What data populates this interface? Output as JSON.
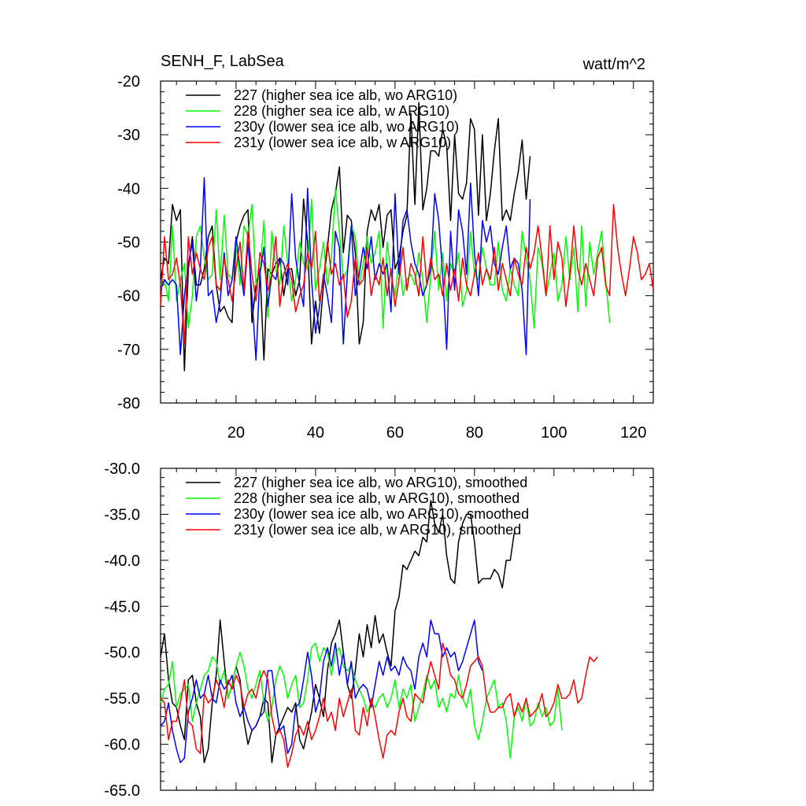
{
  "chart_data": [
    {
      "type": "line",
      "title": "SENH_F, LabSea",
      "units": "watt/m^2",
      "xlabel": "",
      "ylabel": "",
      "xlim": [
        1,
        125
      ],
      "ylim": [
        -80,
        -20
      ],
      "yticks": [
        -80,
        -70,
        -60,
        -50,
        -40,
        -30,
        -20
      ],
      "ytick_labels": [
        "-80",
        "-70",
        "-60",
        "-50",
        "-40",
        "-30",
        "-20"
      ],
      "xticks": [
        20,
        40,
        60,
        80,
        100,
        120
      ],
      "xtick_labels": [
        "20",
        "40",
        "60",
        "80",
        "100",
        "120"
      ],
      "legend_position": "top-left",
      "series": [
        {
          "name": "227 (higher sea ice alb, wo ARG10)",
          "color": "#000000",
          "values": [
            -57,
            -53,
            -54,
            -43,
            -46,
            -44,
            -74,
            -55,
            -49,
            -58,
            -58,
            -55,
            -49,
            -47,
            -58,
            -63,
            -62,
            -64,
            -65,
            -50,
            -47,
            -45,
            -44,
            -65,
            -58,
            -55,
            -72,
            -55,
            -56,
            -54,
            -53,
            -60,
            -55,
            -55,
            -60,
            -57,
            -42,
            -50,
            -69,
            -61,
            -67,
            -58,
            -51,
            -44,
            -41,
            -36,
            -52,
            -45,
            -46,
            -52,
            -69,
            -65,
            -48,
            -44,
            -46,
            -43,
            -51,
            -45,
            -44,
            -55,
            -53,
            -48,
            -45,
            -26,
            -43,
            -24,
            -44,
            -40,
            -33,
            -33,
            -34,
            -29,
            -32,
            -46,
            -30,
            -41,
            -42,
            -39,
            -27,
            -29,
            -45,
            -30,
            -46,
            -41,
            -33,
            -27,
            -46,
            -44,
            -46,
            -41,
            -37,
            -31,
            -42,
            -34
          ]
        },
        {
          "name": "228 (higher sea ice alb, w ARG10)",
          "color": "#00ff00",
          "values": [
            -58,
            -57,
            -61,
            -47,
            -61,
            -57,
            -54,
            -66,
            -60,
            -49,
            -47,
            -53,
            -57,
            -56,
            -44,
            -57,
            -45,
            -56,
            -57,
            -50,
            -58,
            -47,
            -49,
            -43,
            -58,
            -56,
            -46,
            -64,
            -48,
            -55,
            -58,
            -47,
            -54,
            -61,
            -57,
            -50,
            -54,
            -55,
            -42,
            -59,
            -55,
            -50,
            -58,
            -53,
            -40,
            -48,
            -57,
            -55,
            -47,
            -49,
            -58,
            -54,
            -49,
            -54,
            -52,
            -48,
            -66,
            -50,
            -56,
            -60,
            -53,
            -60,
            -57,
            -56,
            -58,
            -52,
            -57,
            -65,
            -56,
            -48,
            -59,
            -52,
            -61,
            -54,
            -56,
            -52,
            -62,
            -59,
            -48,
            -56,
            -57,
            -51,
            -55,
            -58,
            -58,
            -50,
            -59,
            -61,
            -55,
            -58,
            -60,
            -48,
            -53,
            -57,
            -66,
            -51,
            -54,
            -60,
            -56,
            -52,
            -61,
            -58,
            -49,
            -57,
            -51,
            -63,
            -47,
            -62,
            -50,
            -56,
            -52,
            -48,
            -57,
            -65
          ]
        },
        {
          "name": "230y (lower sea ice alb, wo ARG10)",
          "color": "#0000ff",
          "values": [
            -59,
            -57,
            -58,
            -57,
            -58,
            -71,
            -60,
            -54,
            -50,
            -61,
            -55,
            -38,
            -60,
            -59,
            -65,
            -61,
            -52,
            -60,
            -57,
            -49,
            -55,
            -60,
            -50,
            -60,
            -72,
            -56,
            -51,
            -62,
            -56,
            -57,
            -53,
            -54,
            -58,
            -41,
            -53,
            -58,
            -62,
            -40,
            -57,
            -67,
            -62,
            -56,
            -60,
            -65,
            -48,
            -51,
            -69,
            -56,
            -47,
            -60,
            -56,
            -51,
            -55,
            -49,
            -57,
            -54,
            -56,
            -54,
            -63,
            -41,
            -56,
            -46,
            -44,
            -50,
            -54,
            -56,
            -60,
            -58,
            -55,
            -41,
            -46,
            -56,
            -70,
            -48,
            -59,
            -44,
            -48,
            -56,
            -39,
            -52,
            -60,
            -46,
            -50,
            -47,
            -54,
            -56,
            -51,
            -47,
            -55,
            -53,
            -54,
            -59,
            -71,
            -42
          ]
        },
        {
          "name": "231y (lower sea ice alb, w ARG10)",
          "color": "#ff0000",
          "values": [
            -62,
            -49,
            -57,
            -56,
            -53,
            -58,
            -69,
            -49,
            -56,
            -52,
            -55,
            -57,
            -51,
            -49,
            -58,
            -59,
            -53,
            -57,
            -61,
            -55,
            -50,
            -59,
            -48,
            -56,
            -61,
            -52,
            -54,
            -59,
            -56,
            -49,
            -62,
            -56,
            -54,
            -57,
            -63,
            -60,
            -58,
            -52,
            -55,
            -48,
            -61,
            -57,
            -50,
            -56,
            -54,
            -58,
            -56,
            -64,
            -61,
            -53,
            -58,
            -57,
            -51,
            -60,
            -56,
            -58,
            -53,
            -60,
            -55,
            -62,
            -57,
            -51,
            -59,
            -54,
            -56,
            -60,
            -49,
            -58,
            -53,
            -57,
            -56,
            -60,
            -54,
            -59,
            -55,
            -61,
            -53,
            -58,
            -60,
            -56,
            -52,
            -58,
            -55,
            -57,
            -51,
            -59,
            -54,
            -57,
            -60,
            -53,
            -56,
            -58,
            -51,
            -55,
            -52,
            -47,
            -53,
            -60,
            -47,
            -57,
            -50,
            -53,
            -62,
            -56,
            -47,
            -55,
            -58,
            -54,
            -57,
            -60,
            -53,
            -51,
            -58,
            -60,
            -43,
            -51,
            -56,
            -60,
            -55,
            -49,
            -52,
            -57,
            -56,
            -54,
            -59
          ]
        }
      ]
    },
    {
      "type": "line",
      "title": "",
      "xlabel": "",
      "ylabel": "",
      "xlim": [
        1,
        125
      ],
      "ylim": [
        -65.0,
        -30.0
      ],
      "yticks": [
        -65,
        -60,
        -55,
        -50,
        -45,
        -40,
        -35,
        -30
      ],
      "ytick_labels": [
        "-65.0",
        "-60.0",
        "-55.0",
        "-50.0",
        "-45.0",
        "-40.0",
        "-35.0",
        "-30.0"
      ],
      "xticks": [
        20,
        40,
        60,
        80,
        100,
        120
      ],
      "xtick_labels": [],
      "legend_position": "top-left",
      "series": [
        {
          "name": "227 (higher sea ice alb, wo ARG10), smoothed",
          "color": "#000000",
          "values": [
            -50.5,
            -48.0,
            -53.0,
            -55.5,
            -56.0,
            -58.0,
            -59.5,
            -53.0,
            -52.5,
            -55.5,
            -57.0,
            -62.0,
            -60.5,
            -55.5,
            -52.5,
            -46.5,
            -51.0,
            -55.0,
            -53.5,
            -51.5,
            -53.0,
            -57.5,
            -60.0,
            -58.5,
            -58.0,
            -57.0,
            -55.0,
            -55.5,
            -62.0,
            -59.0,
            -58.0,
            -57.0,
            -56.0,
            -56.5,
            -55.5,
            -59.5,
            -60.5,
            -58.5,
            -56.5,
            -53.5,
            -55.0,
            -57.0,
            -52.0,
            -49.0,
            -48.0,
            -46.5,
            -50.0,
            -53.5,
            -55.0,
            -52.0,
            -48.0,
            -50.5,
            -47.0,
            -49.5,
            -46.0,
            -49.0,
            -48.0,
            -50.0,
            -51.5,
            -45.5,
            -44.0,
            -40.5,
            -41.0,
            -40.0,
            -39.0,
            -39.5,
            -37.5,
            -38.0,
            -33.5,
            -36.0,
            -37.0,
            -35.0,
            -39.5,
            -42.0,
            -42.5,
            -38.0,
            -36.0,
            -35.0,
            -35.0,
            -38.0,
            -42.5,
            -42.0,
            -42.0,
            -42.0,
            -41.0,
            -41.5,
            -43.0,
            -40.0,
            -40.0,
            -37.0
          ]
        },
        {
          "name": "228 (higher sea ice alb, w ARG10), smoothed",
          "color": "#00ff00",
          "values": [
            -55.5,
            -54.0,
            -53.5,
            -51.0,
            -56.0,
            -54.5,
            -54.0,
            -53.5,
            -57.5,
            -55.5,
            -54.0,
            -52.5,
            -52.0,
            -50.5,
            -51.0,
            -53.5,
            -52.0,
            -55.0,
            -53.5,
            -51.5,
            -50.0,
            -51.5,
            -54.0,
            -55.0,
            -53.5,
            -52.0,
            -55.5,
            -57.5,
            -56.0,
            -53.0,
            -51.5,
            -52.5,
            -55.0,
            -53.5,
            -52.5,
            -56.0,
            -55.5,
            -53.0,
            -49.5,
            -49.0,
            -51.0,
            -49.5,
            -50.0,
            -52.5,
            -50.0,
            -49.5,
            -51.5,
            -52.0,
            -51.5,
            -53.0,
            -54.0,
            -55.0,
            -56.5,
            -55.5,
            -56.0,
            -55.0,
            -54.5,
            -56.0,
            -55.0,
            -53.0,
            -56.0,
            -54.0,
            -55.0,
            -53.5,
            -57.5,
            -56.0,
            -54.5,
            -52.5,
            -54.0,
            -53.0,
            -56.0,
            -55.0,
            -56.5,
            -54.5,
            -55.0,
            -52.5,
            -55.0,
            -56.0,
            -54.0,
            -58.0,
            -59.5,
            -57.5,
            -55.0,
            -54.0,
            -53.0,
            -56.0,
            -55.5,
            -57.5,
            -61.5,
            -57.0,
            -56.0,
            -57.5,
            -55.0,
            -58.0,
            -57.5,
            -55.5,
            -57.0,
            -56.0,
            -58.0,
            -57.5,
            -54.0,
            -58.5
          ]
        },
        {
          "name": "230y (lower sea ice alb, wo ARG10), smoothed",
          "color": "#0000ff",
          "values": [
            -58.0,
            -57.5,
            -55.5,
            -58.5,
            -60.5,
            -62.0,
            -61.5,
            -56.5,
            -55.0,
            -53.0,
            -55.0,
            -54.5,
            -52.5,
            -55.0,
            -55.5,
            -53.0,
            -54.0,
            -53.5,
            -52.5,
            -55.5,
            -57.0,
            -56.0,
            -57.5,
            -58.5,
            -58.0,
            -57.0,
            -56.5,
            -52.0,
            -52.0,
            -55.5,
            -58.5,
            -58.0,
            -61.0,
            -60.0,
            -56.0,
            -55.5,
            -53.0,
            -50.0,
            -52.5,
            -56.5,
            -55.0,
            -51.0,
            -49.5,
            -51.5,
            -49.0,
            -52.5,
            -50.0,
            -53.5,
            -51.0,
            -55.0,
            -54.0,
            -53.5,
            -54.0,
            -56.0,
            -53.5,
            -51.0,
            -52.5,
            -50.5,
            -52.0,
            -51.5,
            -52.5,
            -50.5,
            -51.5,
            -52.0,
            -54.0,
            -50.5,
            -49.0,
            -50.5,
            -46.5,
            -48.0,
            -48.0,
            -50.5,
            -49.5,
            -50.5,
            -50.0,
            -52.0,
            -51.0,
            -49.5,
            -48.0,
            -46.5,
            -51.0,
            -52.0
          ]
        },
        {
          "name": "231y (lower sea ice alb, w ARG10), smoothed",
          "color": "#ff0000",
          "values": [
            -55.0,
            -55.5,
            -59.5,
            -57.5,
            -57.5,
            -55.5,
            -53.0,
            -57.5,
            -58.0,
            -60.5,
            -61.0,
            -54.5,
            -55.5,
            -55.0,
            -53.0,
            -54.0,
            -56.0,
            -53.0,
            -54.0,
            -52.5,
            -53.5,
            -56.0,
            -54.5,
            -54.0,
            -55.0,
            -53.0,
            -52.0,
            -53.0,
            -57.0,
            -59.0,
            -58.5,
            -59.5,
            -62.5,
            -61.0,
            -59.0,
            -58.0,
            -59.0,
            -57.5,
            -59.5,
            -58.5,
            -57.0,
            -55.0,
            -57.5,
            -56.5,
            -58.5,
            -55.0,
            -57.0,
            -55.5,
            -54.0,
            -58.5,
            -59.0,
            -56.0,
            -58.0,
            -55.0,
            -57.0,
            -59.5,
            -61.5,
            -59.0,
            -58.5,
            -59.0,
            -56.5,
            -55.0,
            -57.0,
            -57.5,
            -54.5,
            -55.0,
            -55.5,
            -53.0,
            -51.0,
            -52.5,
            -54.0,
            -49.0,
            -50.5,
            -52.5,
            -53.0,
            -54.5,
            -55.0,
            -53.5,
            -51.5,
            -51.0,
            -50.5,
            -51.5,
            -55.0,
            -56.5,
            -56.5,
            -56.0,
            -56.0,
            -55.0,
            -54.5,
            -57.0,
            -55.5,
            -56.5,
            -55.0,
            -57.0,
            -56.5,
            -56.0,
            -54.5,
            -57.0,
            -56.5,
            -55.5,
            -53.5,
            -55.0,
            -55.0,
            -54.5,
            -53.0,
            -55.5,
            -55.0,
            -52.5,
            -50.5,
            -51.0,
            -50.5
          ]
        }
      ]
    }
  ]
}
